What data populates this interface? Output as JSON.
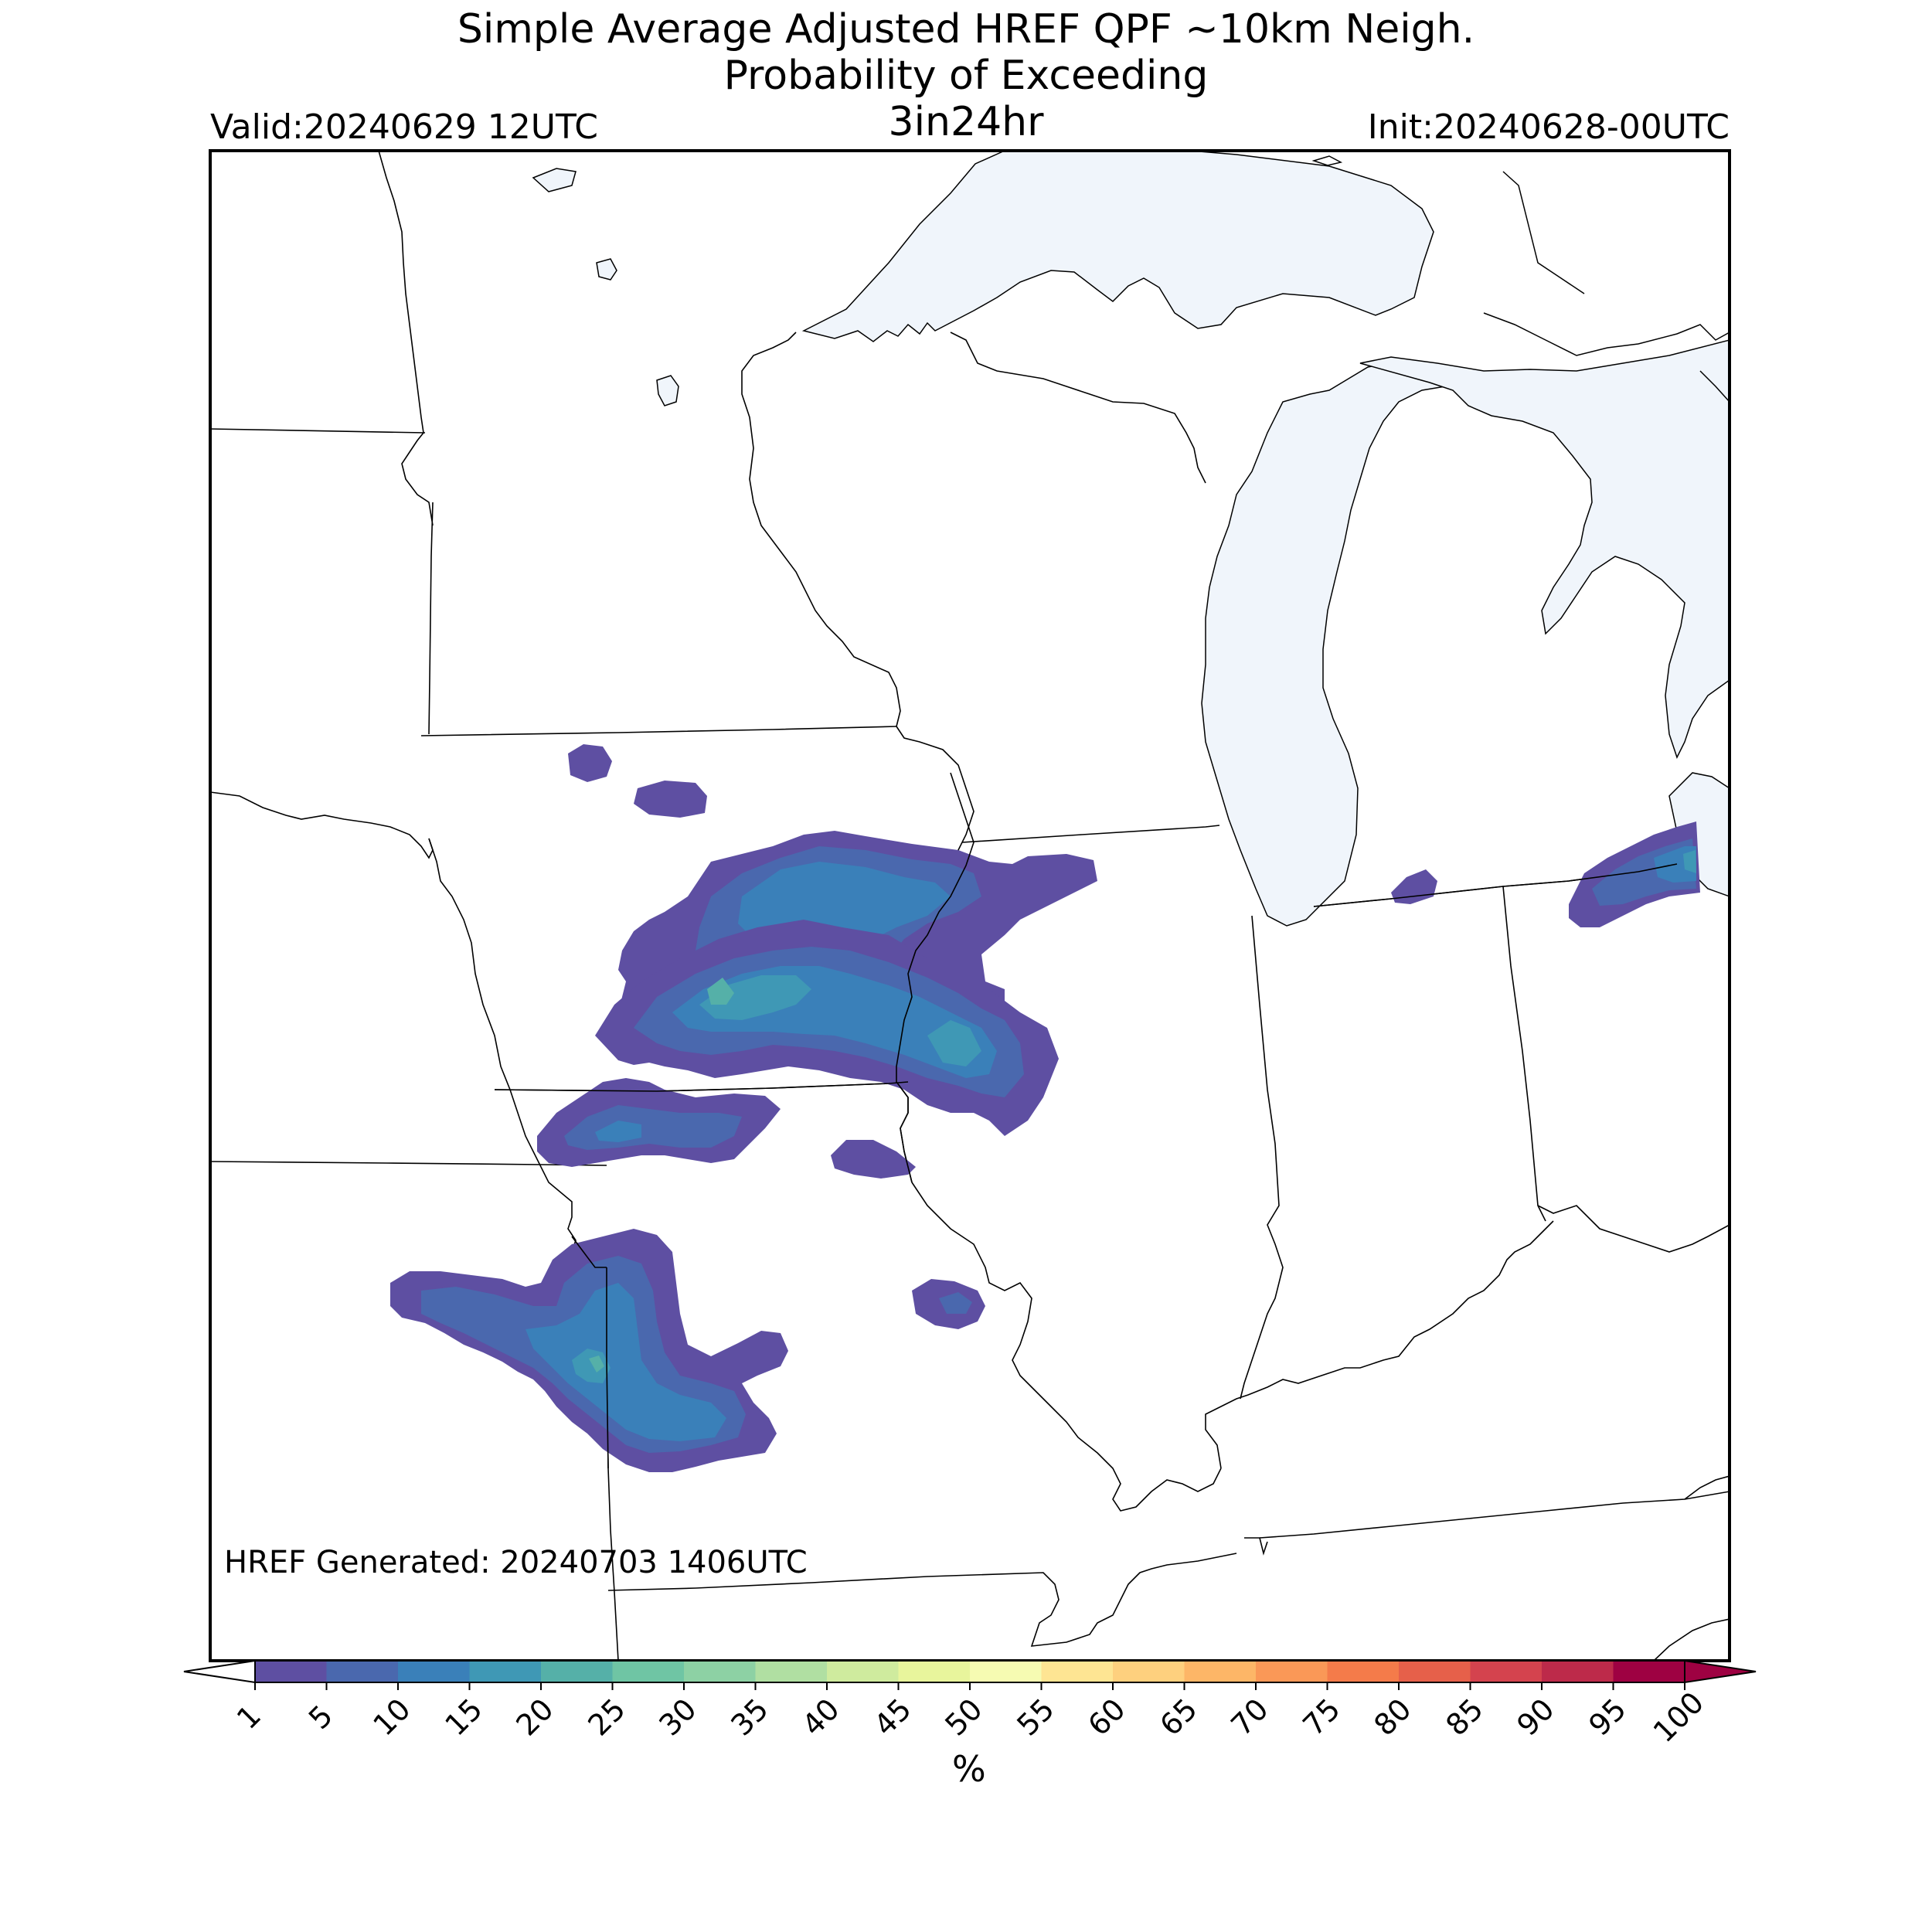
{
  "title": {
    "line1": "Simple Average Adjusted HREF QPF ~10km Neigh.",
    "line2": "Probability of Exceeding",
    "line3": "3in24hr"
  },
  "valid": "Valid:20240629 12UTC",
  "init": "Init:20240628-00UTC",
  "generated": "HREF Generated: 20240703 1406UTC",
  "colorbar": {
    "unit": "%",
    "ticks": [
      "1",
      "5",
      "10",
      "15",
      "20",
      "25",
      "30",
      "35",
      "40",
      "45",
      "50",
      "55",
      "60",
      "65",
      "70",
      "75",
      "80",
      "85",
      "90",
      "95",
      "100"
    ],
    "colors": [
      "#5e4fa2",
      "#4a68ae",
      "#3a80b9",
      "#3f98b5",
      "#55b0a8",
      "#6fc5a4",
      "#8dd1a4",
      "#b0dfa2",
      "#cfeb9e",
      "#e8f59c",
      "#f6fbb2",
      "#fee593",
      "#fed07e",
      "#fdb667",
      "#fa9857",
      "#f47b4a",
      "#e6604a",
      "#d4434e",
      "#bd2a4a",
      "#9e0142"
    ]
  },
  "map_colors": {
    "water": "#f0f5fb",
    "land": "#ffffff",
    "border": "#000000",
    "prob_1_5": "#5e4fa2",
    "prob_5_10": "#4a68ae",
    "prob_10_15": "#3a80b9",
    "prob_15_20": "#3f98b5",
    "prob_20_25": "#55b0a8"
  }
}
